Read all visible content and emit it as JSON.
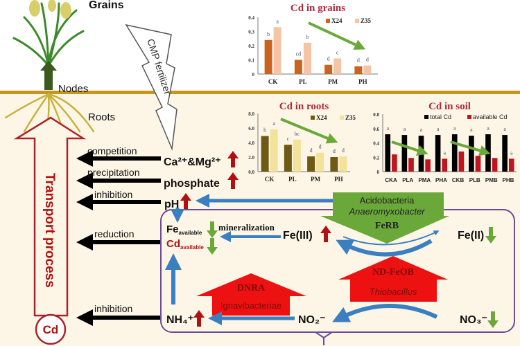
{
  "plant": {
    "grains": "Grains",
    "nodes": "Nodes",
    "roots": "Roots"
  },
  "fertilizer": "CMP fertilizer",
  "transport": {
    "label": "Transport process",
    "cd": "Cd"
  },
  "processes": {
    "competition": "competition",
    "precipitation": "precipitation",
    "inhibition1": "inhibition",
    "reduction": "reduction",
    "inhibition2": "inhibition"
  },
  "factors": {
    "camg": "Ca²⁺&Mg²⁺",
    "phosphate": "phosphate",
    "ph": "pH"
  },
  "cycle": {
    "fe_available": "Fe",
    "fe_available_sub": "available",
    "cd_available": "Cd",
    "cd_available_sub": "available",
    "mineralization": "mineralization",
    "fe3": "Fe(III)",
    "fe2": "Fe(II)",
    "nh4": "NH₄⁺",
    "no2": "NO₂⁻",
    "no3": "NO₃⁻",
    "ferb": {
      "line1": "Acidobacteria",
      "line2": "Anaeromyxobacter",
      "line3": "FeRB"
    },
    "ndfeob": {
      "line1": "ND-FeOB",
      "line2": "Thiobacillus"
    },
    "dnra": {
      "line1": "DNRA",
      "line2": "Ignavibacteriae"
    }
  },
  "colors": {
    "soil_line": "#c8961e",
    "soil_bg": "#fdf6e6",
    "increase": "#b01010",
    "decrease": "#6aa83a",
    "flow": "#3a7fc0",
    "box": "#6a4a9a"
  },
  "chart_data": [
    {
      "type": "bar",
      "title": "Cd in grains",
      "categories": [
        "CK",
        "PL",
        "PM",
        "PH"
      ],
      "ylim": [
        0,
        0.4
      ],
      "yticks": [
        "0",
        "0.1",
        "0.2",
        "0.3",
        "0.4"
      ],
      "series": [
        {
          "name": "X24",
          "color": "#c8641e",
          "values": [
            0.24,
            0.1,
            0.065,
            0.055
          ],
          "letters": [
            "b",
            "cd",
            "d",
            "d"
          ]
        },
        {
          "name": "Z35",
          "color": "#f4c4a4",
          "values": [
            0.33,
            0.22,
            0.11,
            0.06
          ],
          "letters": [
            "a",
            "b",
            "c",
            "d"
          ]
        }
      ]
    },
    {
      "type": "bar",
      "title": "Cd in roots",
      "categories": [
        "CK",
        "PL",
        "PM",
        "PH"
      ],
      "ylim": [
        0,
        8
      ],
      "yticks": [
        "0.0",
        "2.0",
        "4.0",
        "6.0",
        "8.0"
      ],
      "series": [
        {
          "name": "X24",
          "color": "#6e5a14",
          "values": [
            4.9,
            3.7,
            2.1,
            2.0
          ],
          "letters": [
            "b",
            "c",
            "d",
            "d"
          ]
        },
        {
          "name": "Z35",
          "color": "#f2e29a",
          "values": [
            5.8,
            4.4,
            2.6,
            2.1
          ],
          "letters": [
            "a",
            "bc",
            "d",
            "d"
          ]
        }
      ]
    },
    {
      "type": "bar",
      "title": "Cd in soil",
      "categories": [
        "CKA",
        "PLA",
        "PMA",
        "PHA",
        "CKB",
        "PLB",
        "PMB",
        "PHB"
      ],
      "ylim": [
        0,
        0.8
      ],
      "yticks": [
        "0",
        "0.2",
        "0.4",
        "0.6",
        "0.8"
      ],
      "series": [
        {
          "name": "total Cd",
          "color": "#000000",
          "values": [
            0.52,
            0.51,
            0.5,
            0.51,
            0.52,
            0.5,
            0.52,
            0.51
          ],
          "letters": [
            "a",
            "a",
            "a",
            "a",
            "a",
            "a",
            "a",
            "a"
          ]
        },
        {
          "name": "available Cd",
          "color": "#c0141e",
          "values": [
            0.24,
            0.19,
            0.17,
            0.18,
            0.28,
            0.22,
            0.19,
            0.18
          ],
          "letters": [
            "",
            "",
            "",
            "a",
            "",
            "",
            "",
            "a"
          ]
        }
      ]
    }
  ]
}
